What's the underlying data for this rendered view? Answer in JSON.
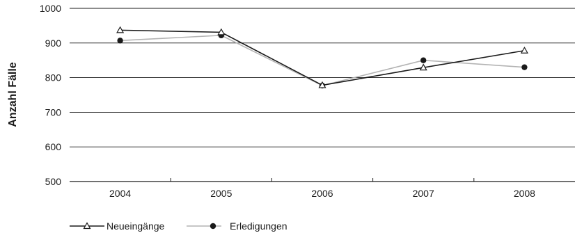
{
  "chart_data": {
    "type": "line",
    "title": "",
    "xlabel": "",
    "ylabel": "Anzahl Fälle",
    "categories": [
      "2004",
      "2005",
      "2006",
      "2007",
      "2008"
    ],
    "ylim": [
      500,
      1000
    ],
    "yticks": [
      500,
      600,
      700,
      800,
      900,
      1000
    ],
    "grid": true,
    "legend_position": "bottom-left",
    "series": [
      {
        "name": "Neueingänge",
        "values": [
          937,
          931,
          778,
          829,
          878
        ],
        "color": "#1a1a1a",
        "marker": "triangle-open"
      },
      {
        "name": "Erledigungen",
        "values": [
          907,
          922,
          777,
          850,
          830
        ],
        "color": "#b3b3b3",
        "marker": "circle-filled",
        "marker_color": "#1a1a1a"
      }
    ]
  }
}
